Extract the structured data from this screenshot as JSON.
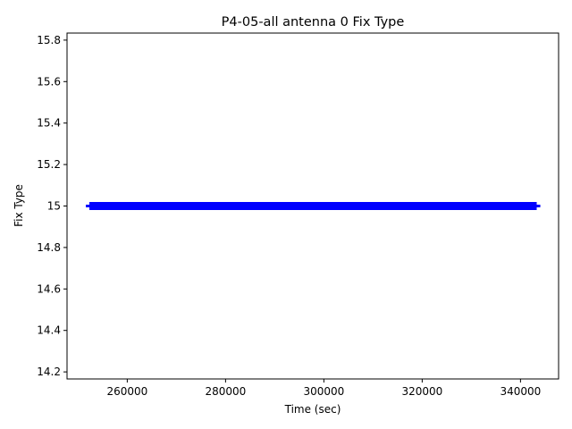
{
  "chart_data": {
    "type": "line",
    "title": "P4-05-all antenna 0 Fix Type",
    "x_label": "Time (sec)",
    "y_label": "Fix Type",
    "x": [
      252300,
      343300
    ],
    "values": [
      15,
      15
    ],
    "color": "#0000ff",
    "xlim": [
      247750,
      347750
    ],
    "xticks": [
      260000,
      280000,
      300000,
      320000,
      340000
    ],
    "ylim": [
      14.166,
      15.834
    ],
    "yticks": [
      14.2,
      14.4,
      14.6,
      14.8,
      15.0,
      15.2,
      15.4,
      15.6,
      15.8
    ]
  }
}
